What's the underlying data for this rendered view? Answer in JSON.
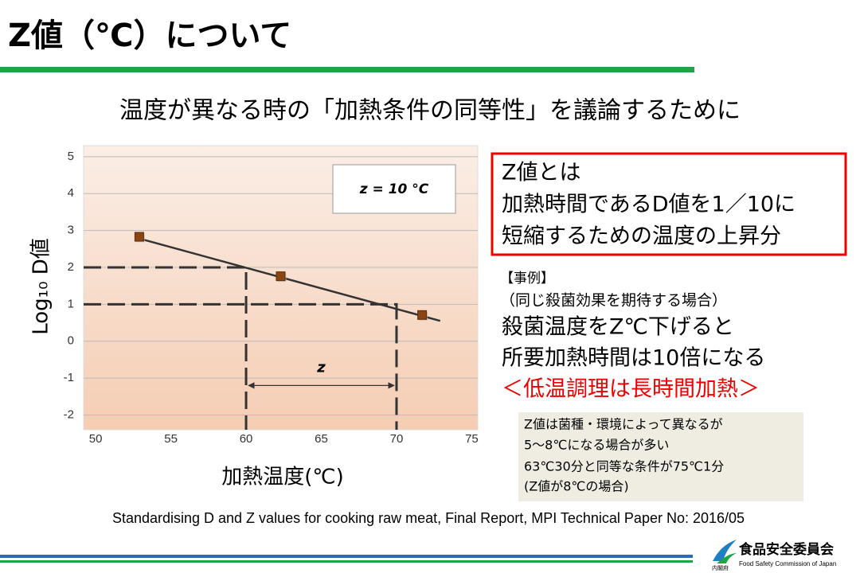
{
  "header": {
    "title": "Z値（℃）について"
  },
  "subtitle": "温度が異なる時の「加熱条件の同等性」を議論するために",
  "chart_data": {
    "type": "scatter",
    "x": [
      52.9,
      62.3,
      71.7
    ],
    "values": [
      2.83,
      1.76,
      0.71
    ],
    "color": "#8b4513",
    "xlim": [
      49.2,
      75.4
    ],
    "ylim": [
      -2.4,
      5.3
    ],
    "xticks": [
      50,
      55,
      60,
      65,
      70,
      75
    ],
    "yticks": [
      5,
      4,
      3,
      2,
      1,
      0,
      -1,
      -2
    ],
    "xlabel": "加熱温度(℃)",
    "ylabel": "Log₁₀ D値",
    "grid": true,
    "trendline": {
      "x": [
        52.75,
        72.9
      ],
      "y": [
        2.8,
        0.55
      ]
    },
    "guides": [
      {
        "x": 60,
        "y": 2
      },
      {
        "x": 70,
        "y": 1
      }
    ],
    "span": {
      "from": 60,
      "to": 70,
      "y": -1.2,
      "label": "z"
    },
    "annotation": "z = 10 °C"
  },
  "definition": {
    "lines": [
      "Z値とは",
      "加熱時間であるD値を1／10に",
      "短縮するための温度の上昇分"
    ]
  },
  "example": {
    "heading": "【事例】",
    "lines": [
      "（同じ殺菌効果を期待する場合）",
      "殺菌温度をZ℃下げると",
      "所要加熱時間は10倍になる"
    ],
    "highlight": "＜低温調理は長時間加熱＞"
  },
  "note": {
    "lines": [
      "Z値は菌種・環境によって異なるが",
      "5～8℃になる場合が多い",
      "63℃30分と同等な条件が75℃1分",
      "(Z値が8℃の場合)"
    ]
  },
  "citation": "Standardising D and Z values for cooking raw meat, Final Report, MPI Technical Paper No: 2016/05",
  "footer": {
    "org": "食品安全委員会",
    "org_en": "Food Safety Commission of Japan",
    "ministry": "内閣府"
  }
}
